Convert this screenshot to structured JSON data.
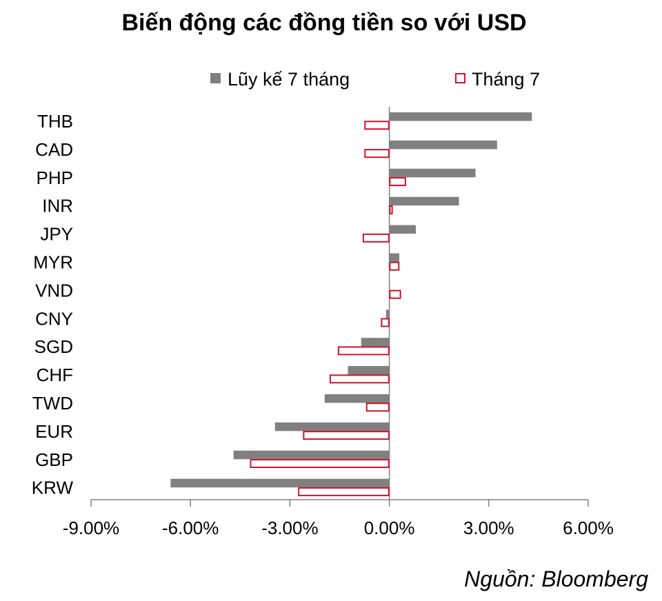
{
  "chart_data": {
    "type": "bar",
    "orientation": "horizontal",
    "title": "Biến động các đồng tiền so với USD",
    "source": "Nguồn: Bloomberg",
    "categories": [
      "THB",
      "CAD",
      "PHP",
      "INR",
      "JPY",
      "MYR",
      "VND",
      "CNY",
      "SGD",
      "CHF",
      "TWD",
      "EUR",
      "GBP",
      "KRW"
    ],
    "series": [
      {
        "name": "Lũy kế 7 tháng",
        "color": "#808080",
        "style": "filled",
        "values": [
          4.3,
          3.25,
          2.6,
          2.1,
          0.8,
          0.3,
          0.0,
          -0.1,
          -0.85,
          -1.25,
          -1.95,
          -3.45,
          -4.7,
          -6.6
        ]
      },
      {
        "name": "Tháng 7",
        "color": "#d0122d",
        "style": "outline",
        "values": [
          -0.75,
          -0.75,
          0.5,
          0.1,
          -0.8,
          0.3,
          0.35,
          -0.25,
          -1.55,
          -1.8,
          -0.7,
          -2.6,
          -4.2,
          -2.75
        ]
      }
    ],
    "xlim": [
      -9,
      6
    ],
    "xticks": [
      -9,
      -6,
      -3,
      0,
      3,
      6
    ],
    "xtick_labels": [
      "-9.00%",
      "-6.00%",
      "-3.00%",
      "0.00%",
      "3.00%",
      "6.00%"
    ],
    "grid": false,
    "legend_position": "top"
  }
}
